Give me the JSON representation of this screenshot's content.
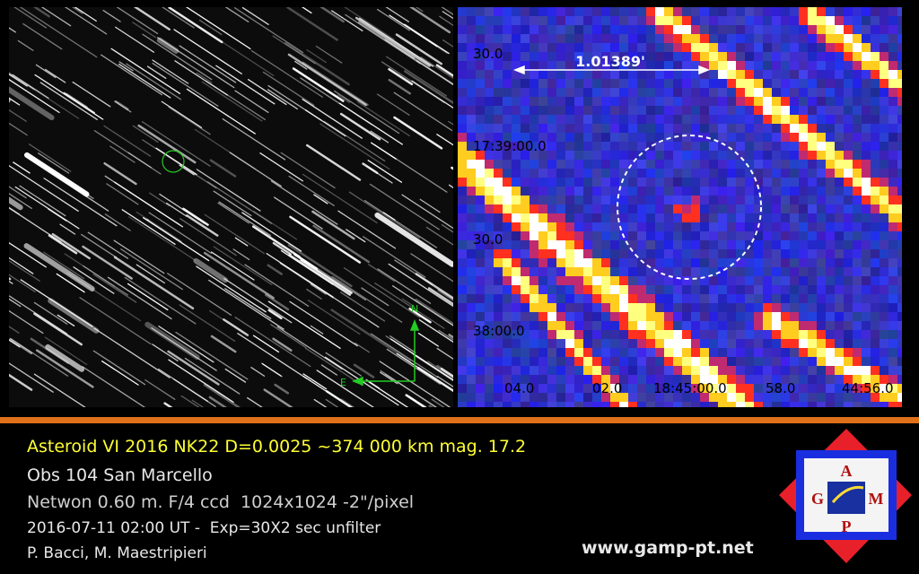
{
  "left_panel": {
    "compass": {
      "north": "N",
      "east": "E"
    }
  },
  "right_panel": {
    "scale_label": "1.01389'",
    "dec_labels": [
      "30.0",
      "17:39:00.0",
      "30.0",
      "38:00.0"
    ],
    "ra_labels": [
      "04.0",
      "02.0",
      "18:45:00.0",
      "58.0",
      "44:56.0"
    ]
  },
  "caption": {
    "lines": [
      "Asteroid VI 2016 NK22 D=0.0025 ~374 000 km mag. 17.2",
      "Obs 104 San Marcello",
      "Netwon 0.60 m. F/4 ccd  1024x1024 -2\"/pixel",
      "2016-07-11 02:00 UT -  Exp=30X2 sec unfilter",
      "P. Bacci, M. Maestripieri"
    ]
  },
  "website": "www.gamp-pt.net",
  "logo": {
    "letters": [
      "A",
      "G",
      "M",
      "P"
    ]
  }
}
